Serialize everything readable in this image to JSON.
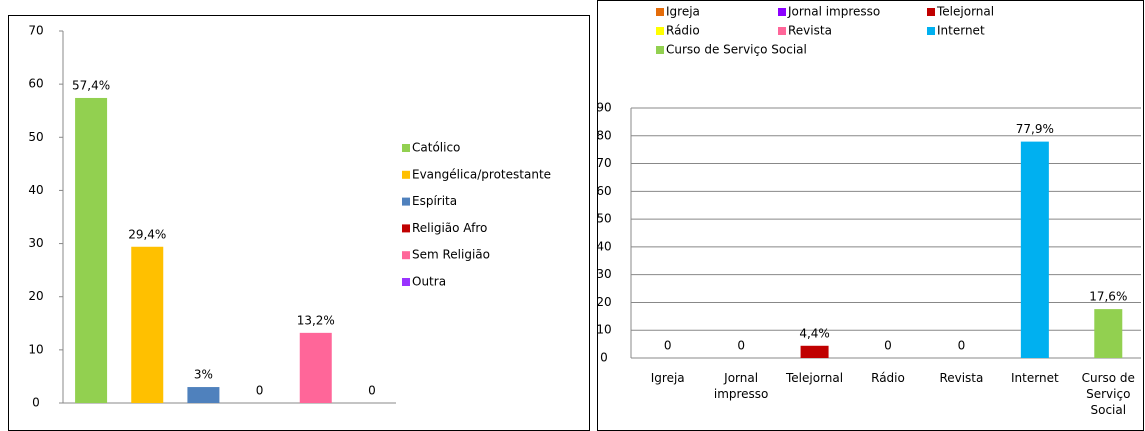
{
  "chart_data": [
    {
      "type": "bar",
      "categories": [
        "Católico",
        "Evangélica/protestante",
        "Espírita",
        "Religião Afro",
        "Sem Religião",
        "Outra"
      ],
      "values": [
        57.4,
        29.4,
        3,
        0,
        13.2,
        0
      ],
      "value_labels": [
        "57,4%",
        "29,4%",
        "3%",
        "0",
        "13,2%",
        "0"
      ],
      "colors": [
        "#92d050",
        "#ffc000",
        "#4f81bd",
        "#c00000",
        "#ff6699",
        "#9933ff"
      ],
      "ylim": [
        0,
        70
      ],
      "yticks": [
        0,
        10,
        20,
        30,
        40,
        50,
        60,
        70
      ],
      "grid": false,
      "legend": "right",
      "category_axis_labels": false
    },
    {
      "type": "bar",
      "categories": [
        "Igreja",
        "Jornal impresso",
        "Telejornal",
        "Rádio",
        "Revista",
        "Internet",
        "Curso de Serviço Social"
      ],
      "values": [
        0,
        0,
        4.4,
        0,
        0,
        77.9,
        17.6
      ],
      "value_labels": [
        "0",
        "0",
        "4,4%",
        "0",
        "0",
        "77,9%",
        "17,6%"
      ],
      "colors": [
        "#e46c0a",
        "#8b00ff",
        "#c00000",
        "#ffff00",
        "#ff6699",
        "#00b0f0",
        "#92d050"
      ],
      "ylim": [
        0,
        90
      ],
      "yticks": [
        0,
        10,
        20,
        30,
        40,
        50,
        60,
        70,
        80,
        90
      ],
      "grid": true,
      "legend": "top",
      "category_axis_labels": true
    }
  ]
}
